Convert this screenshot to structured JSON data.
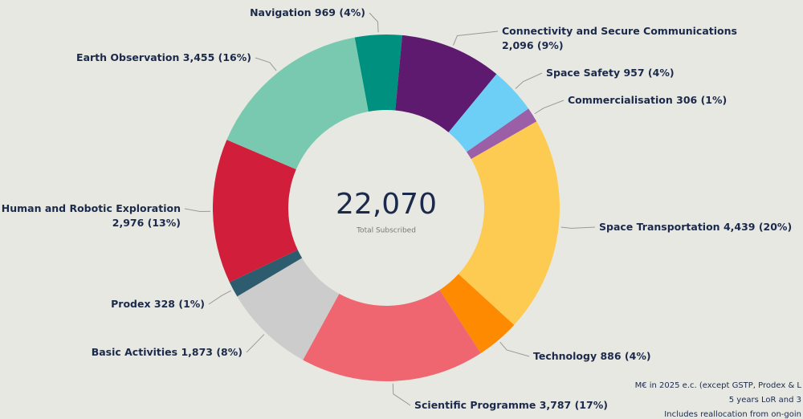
{
  "chart_data": {
    "type": "donut",
    "categories": [
      "Navigation",
      "Connectivity and Secure Communications",
      "Space Safety",
      "Commercialisation",
      "Space Transportation",
      "Technology",
      "Scientific Programme",
      "Basic Activities",
      "Prodex",
      "Human and Robotic Exploration",
      "Earth Observation"
    ],
    "values": [
      969,
      2096,
      957,
      306,
      4439,
      886,
      3787,
      1873,
      328,
      2976,
      3455
    ],
    "value_labels": [
      "969 (4%)",
      "2,096 (9%)",
      "957 (4%)",
      "306 (1%)",
      "4,439 (20%)",
      "886 (4%)",
      "3,787 (17%)",
      "1,873 (8%)",
      "328 (1%)",
      "2,976 (13%)",
      "3,455 (16%)"
    ],
    "colors": [
      "#00907f",
      "#5e1a6e",
      "#6ecff6",
      "#9b5fa8",
      "#fecb52",
      "#fd8a00",
      "#ef6670",
      "#cccccc",
      "#2d5c6e",
      "#d11e3a",
      "#79c9b0"
    ],
    "center_value": {
      "value": 22070,
      "label": "22,070"
    },
    "center_caption": "Total Subscribed",
    "notes": [
      "M€ in 2025 e.c. (except GSTP, Prodex & L",
      "5 years LoR and 3",
      "Includes reallocation from on-goin"
    ]
  }
}
